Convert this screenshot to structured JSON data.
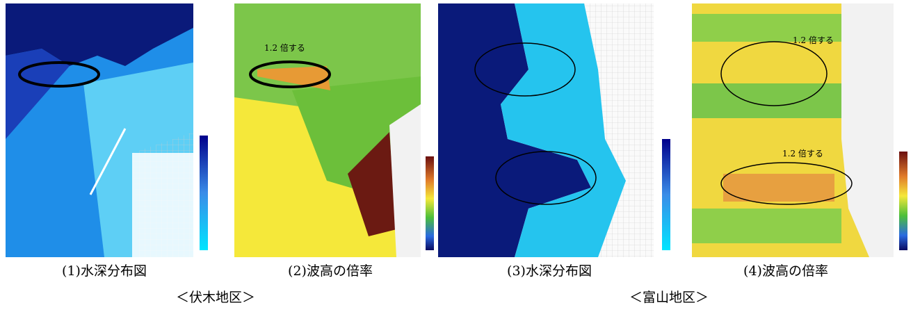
{
  "panels": [
    {
      "caption": "(1)水深分布図"
    },
    {
      "caption": "(2)波高の倍率",
      "annotation": "1.2 倍する"
    },
    {
      "caption": "(3)水深分布図"
    },
    {
      "caption": "(4)波高の倍率",
      "annotations": [
        "1.2 倍する",
        "1.2 倍する"
      ]
    }
  ],
  "groups": [
    "＜伏木地区＞",
    "＜富山地区＞"
  ]
}
